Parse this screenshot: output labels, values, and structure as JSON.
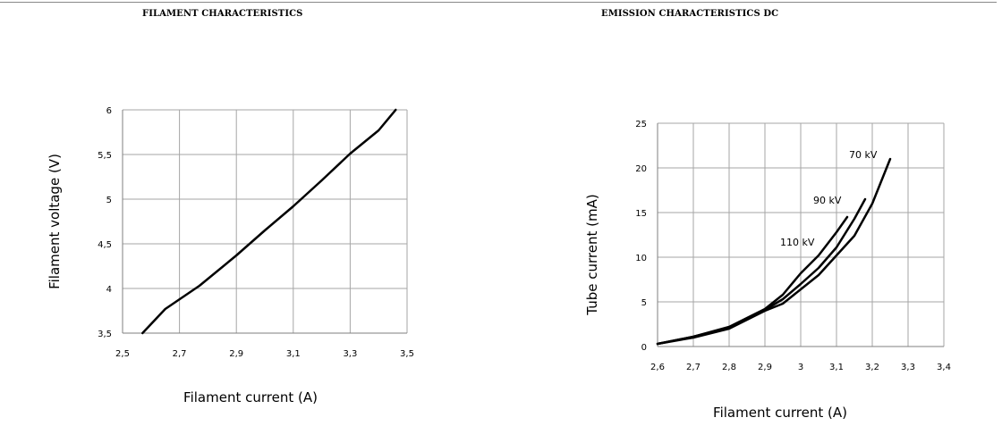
{
  "chart_data": [
    {
      "type": "line",
      "title": "FILAMENT CHARACTERISTICS",
      "xlabel": "Filament current (A)",
      "ylabel": "Filament voltage (V)",
      "xlim": [
        2.5,
        3.5
      ],
      "ylim": [
        3.5,
        6
      ],
      "xticks": [
        "2,5",
        "2,7",
        "2,9",
        "3,1",
        "3,3",
        "3,5"
      ],
      "yticks": [
        "3,5",
        "4",
        "4,5",
        "5",
        "5,5",
        "6"
      ],
      "grid": true,
      "series": [
        {
          "x": [
            2.57,
            2.65,
            2.77,
            2.9,
            3.0,
            3.1,
            3.2,
            3.3,
            3.4,
            3.46
          ],
          "y": [
            3.5,
            3.77,
            4.03,
            4.37,
            4.65,
            4.92,
            5.21,
            5.51,
            5.77,
            6.0
          ]
        }
      ]
    },
    {
      "type": "line",
      "title": "EMISSION CHARACTERISTICS DC",
      "xlabel": "Filament current (A)",
      "ylabel": "Tube current (mA)",
      "xlim": [
        2.6,
        3.4
      ],
      "ylim": [
        0,
        25
      ],
      "xticks": [
        "2,6",
        "2,7",
        "2,8",
        "2,9",
        "3",
        "3,1",
        "3,2",
        "3,3",
        "3,4"
      ],
      "yticks": [
        "0",
        "5",
        "10",
        "15",
        "20",
        "25"
      ],
      "grid": true,
      "series": [
        {
          "name": "110 kV",
          "x": [
            2.6,
            2.7,
            2.8,
            2.9,
            2.95,
            3.0,
            3.05,
            3.1,
            3.13
          ],
          "y": [
            0.3,
            1.1,
            2.2,
            4.2,
            5.8,
            8.2,
            10.2,
            12.8,
            14.5
          ]
        },
        {
          "name": "90 kV",
          "x": [
            2.6,
            2.7,
            2.8,
            2.9,
            2.95,
            3.0,
            3.05,
            3.1,
            3.15,
            3.18
          ],
          "y": [
            0.3,
            1.1,
            2.1,
            4.1,
            5.3,
            7.0,
            8.8,
            11.1,
            14.3,
            16.5
          ]
        },
        {
          "name": "70 kV",
          "x": [
            2.6,
            2.7,
            2.8,
            2.9,
            2.95,
            3.0,
            3.05,
            3.1,
            3.15,
            3.2,
            3.25
          ],
          "y": [
            0.3,
            1.0,
            2.0,
            4.0,
            4.8,
            6.4,
            8.0,
            10.2,
            12.4,
            16.0,
            21.0
          ]
        }
      ]
    }
  ]
}
